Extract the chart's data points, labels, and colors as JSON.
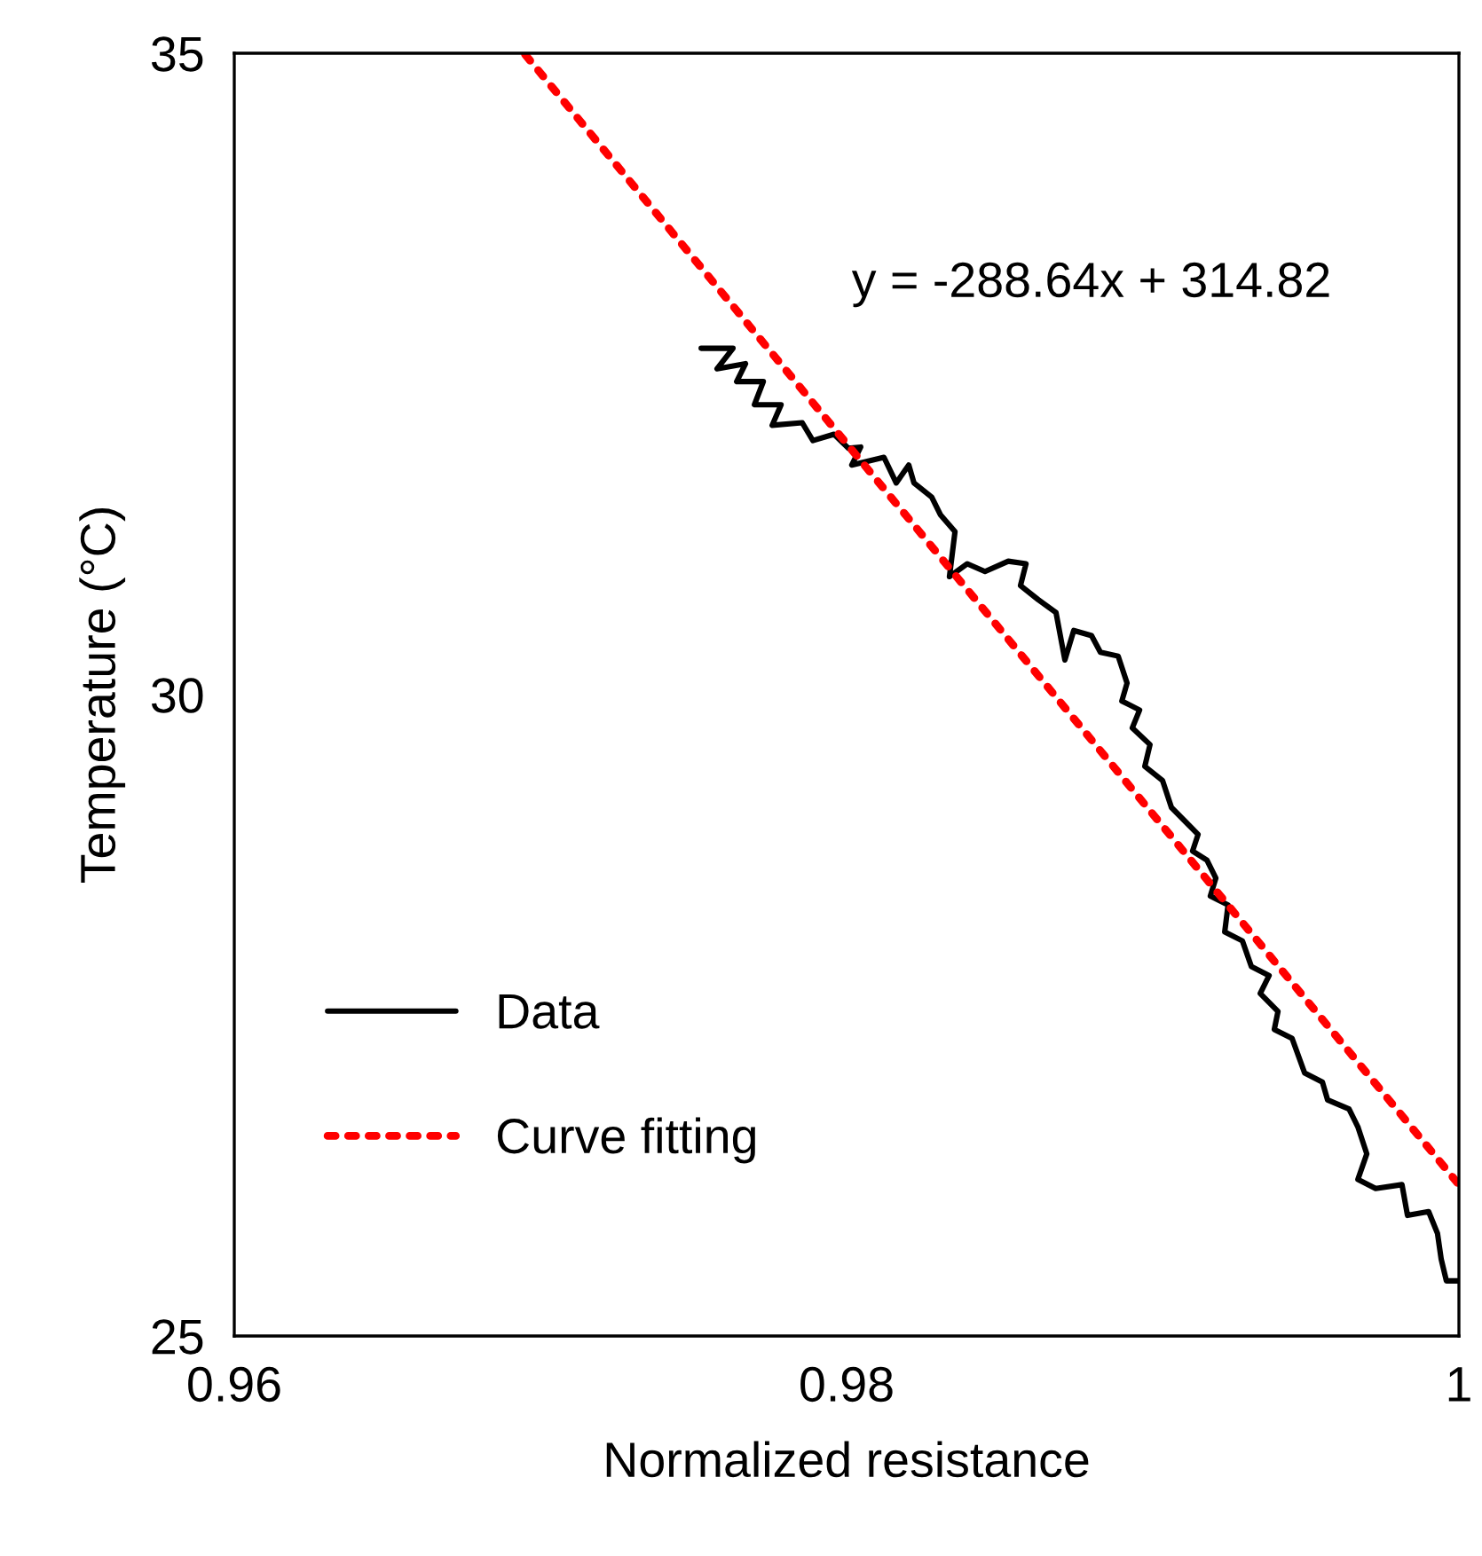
{
  "chart_data": {
    "type": "line",
    "xlabel": "Normalized resistance",
    "ylabel": "Temperature (°C)",
    "xlim": [
      0.96,
      1.0
    ],
    "xticks": [
      0.96,
      0.98,
      {
        "value": 1.0,
        "label": "1"
      }
    ],
    "ylim": [
      25,
      35
    ],
    "yticks": [
      25,
      30,
      35
    ],
    "grid": false,
    "legend": "bottom left",
    "annotations": [
      "y = -288.64x + 314.82"
    ],
    "series": [
      {
        "name": "Data",
        "color": "#000000",
        "line_style": "solid",
        "x": [
          0.97525,
          0.97629,
          0.97577,
          0.9767,
          0.97641,
          0.97728,
          0.97699,
          0.97786,
          0.97757,
          0.97855,
          0.9789,
          0.97959,
          0.98006,
          0.98046,
          0.98017,
          0.98122,
          0.98162,
          0.98203,
          0.9822,
          0.98278,
          0.98307,
          0.98354,
          0.98336,
          0.98394,
          0.98452,
          0.98528,
          0.98586,
          0.98568,
          0.98626,
          0.98684,
          0.98713,
          0.98742,
          0.988,
          0.98829,
          0.98887,
          0.98916,
          0.98899,
          0.98957,
          0.98933,
          0.98991,
          0.98974,
          0.99032,
          0.99061,
          0.99119,
          0.99148,
          0.9913,
          0.99177,
          0.99206,
          0.99188,
          0.99246,
          0.99235,
          0.99293,
          0.99322,
          0.9938,
          0.99351,
          0.99409,
          0.99397,
          0.99455,
          0.99496,
          0.99554,
          0.99571,
          0.99641,
          0.9967,
          0.99699,
          0.9967,
          0.99728,
          0.99814,
          0.99832,
          0.99901,
          0.9993,
          0.99942,
          0.99959,
          1.0
        ],
        "values": [
          32.7,
          32.7,
          32.54,
          32.58,
          32.44,
          32.44,
          32.26,
          32.26,
          32.1,
          32.12,
          31.98,
          32.03,
          31.92,
          31.93,
          31.79,
          31.85,
          31.65,
          31.79,
          31.65,
          31.54,
          31.4,
          31.27,
          30.92,
          31.02,
          30.96,
          31.04,
          31.02,
          30.85,
          30.74,
          30.64,
          30.27,
          30.5,
          30.46,
          30.33,
          30.3,
          30.09,
          29.95,
          29.88,
          29.74,
          29.61,
          29.44,
          29.33,
          29.12,
          28.98,
          28.91,
          28.78,
          28.71,
          28.57,
          28.43,
          28.36,
          28.15,
          28.08,
          27.88,
          27.81,
          27.67,
          27.53,
          27.39,
          27.32,
          27.05,
          26.98,
          26.84,
          26.77,
          26.63,
          26.42,
          26.22,
          26.15,
          26.18,
          25.94,
          25.97,
          25.8,
          25.6,
          25.43,
          25.43
        ]
      },
      {
        "name": "Curve fitting",
        "color": "#ff0000",
        "line_style": "dotted",
        "x": [
          0.9695,
          1.0
        ],
        "values": [
          34.99,
          26.18
        ]
      }
    ]
  }
}
